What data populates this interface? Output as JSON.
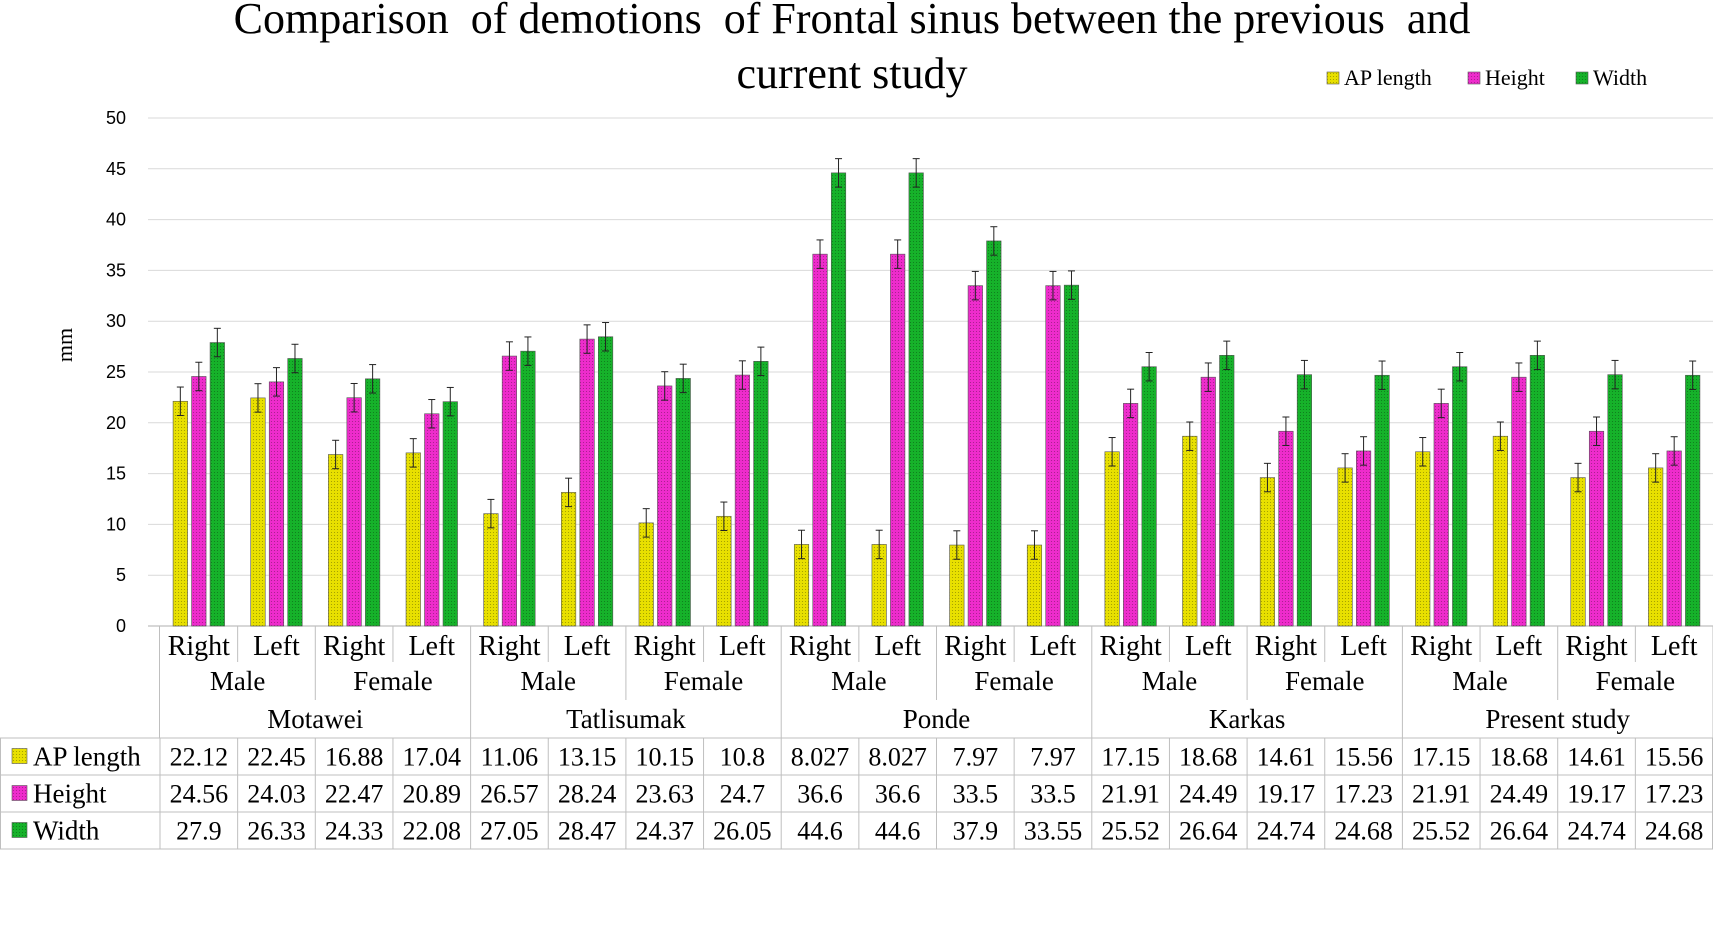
{
  "colors": {
    "ap_length": "#e8e000",
    "height": "#ee2ccc",
    "width": "#16b22a",
    "grid": "#d9d9d9",
    "axis": "#bfbfbf"
  },
  "chart_data": {
    "type": "bar",
    "title": "Comparison of demotions of Frontal sinus between the previous and current study",
    "title_lines": [
      "Comparison  of demotions  of Frontal sinus between the previous  and",
      "current study"
    ],
    "ylabel": "mm",
    "xlabel": "",
    "ylim": [
      0,
      50
    ],
    "yticks": [
      0,
      5,
      10,
      15,
      20,
      25,
      30,
      35,
      40,
      45,
      50
    ],
    "grid": true,
    "legend": "top-right",
    "error_bars": true,
    "studies": [
      "Motawei",
      "Tatlisumak",
      "Ponde",
      "Karkas",
      "Present study"
    ],
    "sexes": [
      "Male",
      "Female"
    ],
    "sides": [
      "Right",
      "Left"
    ],
    "categories": [
      "Motawei Male Right",
      "Motawei Male Left",
      "Motawei Female Right",
      "Motawei Female Left",
      "Tatlisumak Male Right",
      "Tatlisumak Male Left",
      "Tatlisumak Female Right",
      "Tatlisumak Female Left",
      "Ponde Male Right",
      "Ponde Male Left",
      "Ponde Female Right",
      "Ponde Female Left",
      "Karkas Male Right",
      "Karkas Male Left",
      "Karkas Female Right",
      "Karkas Female Left",
      "Present study Male Right",
      "Present study Male Left",
      "Present study Female Right",
      "Present study Female Left"
    ],
    "series": [
      {
        "name": "AP length",
        "values": [
          22.12,
          22.45,
          16.88,
          17.04,
          11.06,
          13.15,
          10.15,
          10.8,
          8.027,
          8.027,
          7.97,
          7.97,
          17.15,
          18.68,
          14.61,
          15.56,
          17.15,
          18.68,
          14.61,
          15.56
        ],
        "labels": [
          "22.12",
          "22.45",
          "16.88",
          "17.04",
          "11.06",
          "13.15",
          "10.15",
          "10.8",
          "8.027",
          "8.027",
          "7.97",
          "7.97",
          "17.15",
          "18.68",
          "14.61",
          "15.56",
          "17.15",
          "18.68",
          "14.61",
          "15.56"
        ]
      },
      {
        "name": "Height",
        "values": [
          24.56,
          24.03,
          22.47,
          20.89,
          26.57,
          28.24,
          23.63,
          24.7,
          36.6,
          36.6,
          33.5,
          33.5,
          21.91,
          24.49,
          19.17,
          17.23,
          21.91,
          24.49,
          19.17,
          17.23
        ],
        "labels": [
          "24.56",
          "24.03",
          "22.47",
          "20.89",
          "26.57",
          "28.24",
          "23.63",
          "24.7",
          "36.6",
          "36.6",
          "33.5",
          "33.5",
          "21.91",
          "24.49",
          "19.17",
          "17.23",
          "21.91",
          "24.49",
          "19.17",
          "17.23"
        ]
      },
      {
        "name": "Width",
        "values": [
          27.9,
          26.33,
          24.33,
          22.08,
          27.05,
          28.47,
          24.37,
          26.05,
          44.6,
          44.6,
          37.9,
          33.55,
          25.52,
          26.64,
          24.74,
          24.68,
          25.52,
          26.64,
          24.74,
          24.68
        ],
        "labels": [
          "27.9",
          "26.33",
          "24.33",
          "22.08",
          "27.05",
          "28.47",
          "24.37",
          "26.05",
          "44.6",
          "44.6",
          "37.9",
          "33.55",
          "25.52",
          "26.64",
          "24.74",
          "24.68",
          "25.52",
          "26.64",
          "24.74",
          "24.68"
        ]
      }
    ]
  }
}
